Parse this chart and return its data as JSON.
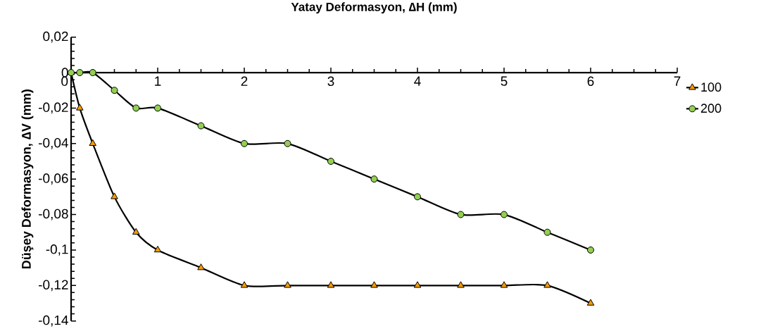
{
  "chart_data": {
    "type": "line",
    "xlabel": "Yatay Deformasyon, ∆H (mm)",
    "ylabel": "Düşey Deformasyon, ∆V (mm)",
    "xlim": [
      0,
      7
    ],
    "xticks": [
      0,
      1,
      2,
      3,
      4,
      5,
      6,
      7
    ],
    "ylim": [
      -0.14,
      0.02
    ],
    "yticks": [
      {
        "value": -0.14,
        "label": "-0,14"
      },
      {
        "value": -0.12,
        "label": "-0,12"
      },
      {
        "value": -0.1,
        "label": "-0,1"
      },
      {
        "value": -0.08,
        "label": "-0,08"
      },
      {
        "value": -0.06,
        "label": "-0,06"
      },
      {
        "value": -0.04,
        "label": "-0,04"
      },
      {
        "value": -0.02,
        "label": "-0,02"
      },
      {
        "value": 0,
        "label": "0"
      },
      {
        "value": 0.02,
        "label": "0,02"
      }
    ],
    "grid": false,
    "legend": "right",
    "line_style": "solid",
    "series": [
      {
        "name": "100",
        "color": "#f59b00",
        "marker": "triangle",
        "x": [
          0,
          0.1,
          0.25,
          0.5,
          0.75,
          1,
          1.5,
          2,
          2.5,
          3,
          3.5,
          4,
          4.5,
          5,
          5.5,
          6
        ],
        "values": [
          0,
          -0.02,
          -0.04,
          -0.07,
          -0.09,
          -0.1,
          -0.11,
          -0.12,
          -0.12,
          -0.12,
          -0.12,
          -0.12,
          -0.12,
          -0.12,
          -0.12,
          -0.13
        ]
      },
      {
        "name": "200",
        "color": "#92d050",
        "marker": "circle",
        "x": [
          0,
          0.1,
          0.25,
          0.5,
          0.75,
          1,
          1.5,
          2,
          2.5,
          3,
          3.5,
          4,
          4.5,
          5,
          5.5,
          6
        ],
        "values": [
          0,
          0,
          0,
          -0.01,
          -0.02,
          -0.02,
          -0.03,
          -0.04,
          -0.04,
          -0.05,
          -0.06,
          -0.07,
          -0.08,
          -0.08,
          -0.09,
          -0.1
        ]
      }
    ]
  }
}
